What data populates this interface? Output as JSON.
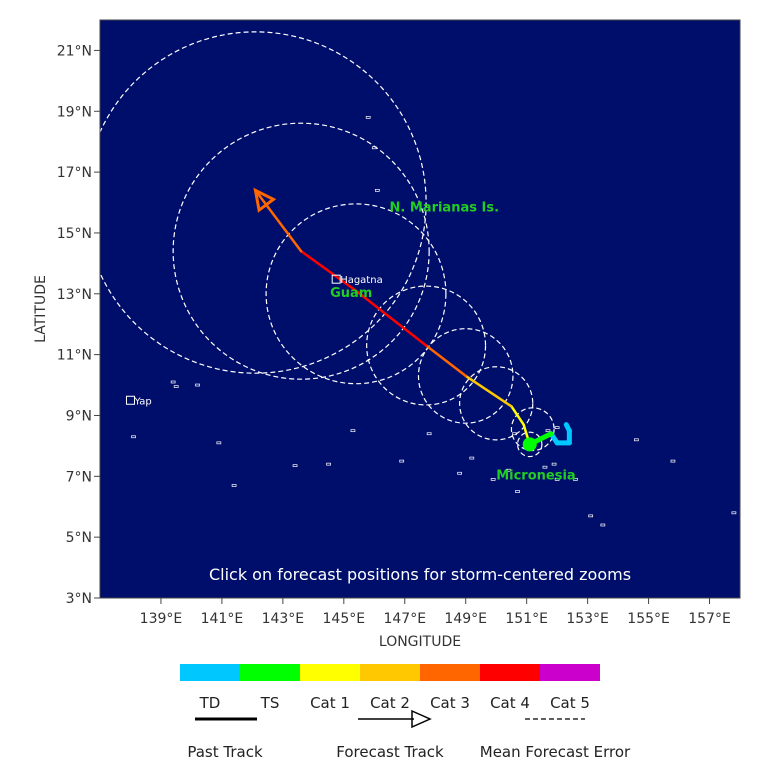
{
  "map": {
    "xlabel": "LONGITUDE",
    "ylabel": "LATITUDE",
    "xlim": [
      137,
      158
    ],
    "ylim": [
      3,
      22
    ],
    "x_ticks": [
      {
        "value": 139,
        "label": "139°E"
      },
      {
        "value": 141,
        "label": "141°E"
      },
      {
        "value": 143,
        "label": "143°E"
      },
      {
        "value": 145,
        "label": "145°E"
      },
      {
        "value": 147,
        "label": "147°E"
      },
      {
        "value": 149,
        "label": "149°E"
      },
      {
        "value": 151,
        "label": "151°E"
      },
      {
        "value": 153,
        "label": "153°E"
      },
      {
        "value": 155,
        "label": "155°E"
      },
      {
        "value": 157,
        "label": "157°E"
      }
    ],
    "y_ticks": [
      {
        "value": 3,
        "label": "3°N"
      },
      {
        "value": 5,
        "label": "5°N"
      },
      {
        "value": 7,
        "label": "7°N"
      },
      {
        "value": 9,
        "label": "9°N"
      },
      {
        "value": 11,
        "label": "11°N"
      },
      {
        "value": 13,
        "label": "13°N"
      },
      {
        "value": 15,
        "label": "15°N"
      },
      {
        "value": 17,
        "label": "17°N"
      },
      {
        "value": 19,
        "label": "19°N"
      },
      {
        "value": 21,
        "label": "21°N"
      }
    ],
    "banner": "Click on forecast positions for storm-centered zooms",
    "colors": {
      "ocean": "#000e6b",
      "label_green": "#22cc22",
      "TD": "#00c8ff",
      "TS": "#00ff00",
      "Cat 1": "#ffff00",
      "Cat 2": "#ffc800",
      "Cat 3": "#ff6600",
      "Cat 4": "#ff0000",
      "Cat 5": "#cc00cc"
    },
    "places": [
      {
        "name": "Yap",
        "lon": 138.0,
        "lat": 9.5
      },
      {
        "name": "Hagatna",
        "lon": 144.75,
        "lat": 13.48
      }
    ],
    "regions": [
      {
        "name": "N. Marianas Is.",
        "lon": 146.5,
        "lat": 15.7
      },
      {
        "name": "Guam",
        "lon": 144.55,
        "lat": 12.9
      },
      {
        "name": "Micronesia",
        "lon": 150.0,
        "lat": 6.9
      }
    ],
    "past_track": [
      {
        "lon": 152.3,
        "lat": 8.7,
        "cat": "TD"
      },
      {
        "lon": 152.4,
        "lat": 8.5,
        "cat": "TD"
      },
      {
        "lon": 152.4,
        "lat": 8.1,
        "cat": "TD"
      },
      {
        "lon": 152.0,
        "lat": 8.1,
        "cat": "TD"
      },
      {
        "lon": 151.8,
        "lat": 8.4,
        "cat": "TS"
      },
      {
        "lon": 151.4,
        "lat": 8.2,
        "cat": "TS"
      },
      {
        "lon": 151.1,
        "lat": 8.05,
        "cat": "TS"
      }
    ],
    "current_position": {
      "lon": 151.1,
      "lat": 8.05,
      "cat": "TS"
    },
    "forecast_track": [
      {
        "lon": 151.1,
        "lat": 8.05,
        "cat": "TS"
      },
      {
        "lon": 150.9,
        "lat": 8.7,
        "cat": "Cat 1"
      },
      {
        "lon": 150.5,
        "lat": 9.3,
        "cat": "Cat 1"
      },
      {
        "lon": 149.0,
        "lat": 10.3,
        "cat": "Cat 2"
      },
      {
        "lon": 147.7,
        "lat": 11.3,
        "cat": "Cat 3"
      },
      {
        "lon": 145.4,
        "lat": 13.1,
        "cat": "Cat 4"
      },
      {
        "lon": 143.6,
        "lat": 14.4,
        "cat": "Cat 4"
      },
      {
        "lon": 142.1,
        "lat": 16.4,
        "cat": "Cat 3"
      }
    ],
    "error_circles": [
      {
        "lon": 151.1,
        "lat": 8.05,
        "r": 0.4
      },
      {
        "lon": 151.2,
        "lat": 8.55,
        "r": 0.7
      },
      {
        "lon": 150.0,
        "lat": 9.4,
        "r": 1.2
      },
      {
        "lon": 149.0,
        "lat": 10.3,
        "r": 1.55
      },
      {
        "lon": 147.7,
        "lat": 11.3,
        "r": 1.95
      },
      {
        "lon": 145.4,
        "lat": 13.0,
        "r": 2.95
      },
      {
        "lon": 143.6,
        "lat": 14.4,
        "r": 4.2
      },
      {
        "lon": 142.1,
        "lat": 16.0,
        "r": 5.6
      }
    ]
  },
  "legend": {
    "categories": [
      "TD",
      "TS",
      "Cat 1",
      "Cat 2",
      "Cat 3",
      "Cat 4",
      "Cat 5"
    ],
    "past_track_label": "Past Track",
    "forecast_track_label": "Forecast Track",
    "error_label": "Mean Forecast Error"
  }
}
